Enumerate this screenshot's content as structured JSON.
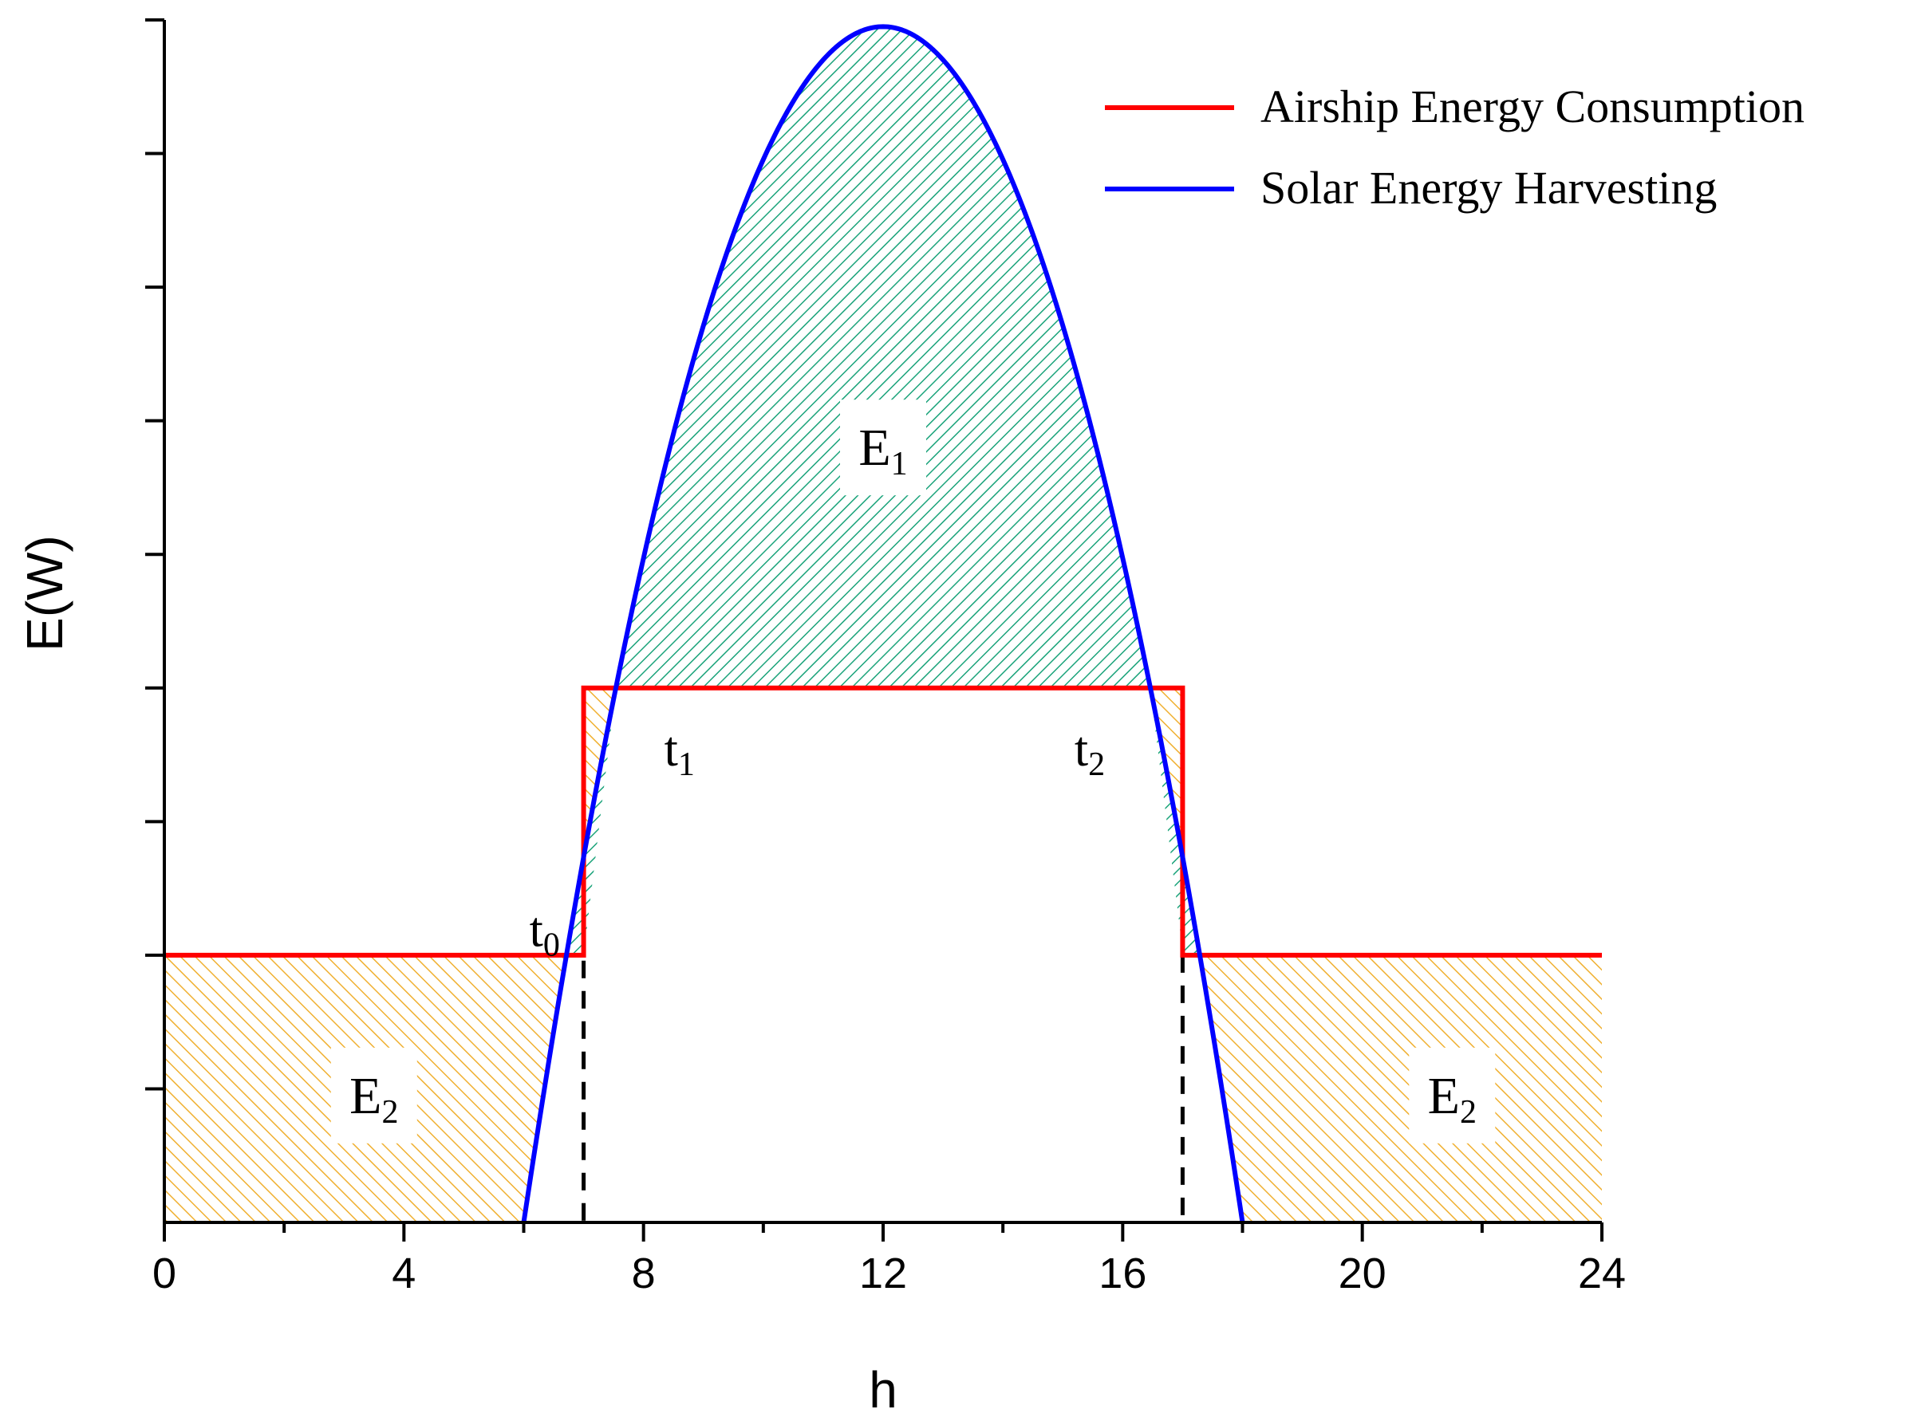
{
  "chart_data": {
    "type": "line",
    "xlabel": "h",
    "ylabel": "E(W)",
    "xlim": [
      0,
      24
    ],
    "ylim": [
      0,
      9
    ],
    "x_ticks": [
      0,
      4,
      8,
      12,
      16,
      20,
      24
    ],
    "y_tick_labels": "none",
    "grid": false,
    "legend_position": "top-right",
    "series": [
      {
        "name": "Airship Energy Consumption",
        "color": "#ff0000",
        "shape": "step",
        "x": [
          0,
          7,
          7,
          17,
          17,
          24
        ],
        "y": [
          2,
          2,
          4,
          4,
          2,
          2
        ]
      },
      {
        "name": "Solar Energy Harvesting",
        "color": "#0000ff",
        "shape": "parabola",
        "x_start": 6,
        "x_end": 18,
        "peak_x": 12,
        "peak_y": 8.95
      }
    ],
    "vertical_dashed_lines": [
      7,
      17
    ],
    "regions": [
      {
        "label_main": "E",
        "label_sub": "1",
        "fill": "green-hatch",
        "label_x": 12,
        "label_y": 5.8
      },
      {
        "label_main": "E",
        "label_sub": "2",
        "fill": "orange-hatch",
        "label_x": 3.5,
        "label_y": 0.95
      },
      {
        "label_main": "E",
        "label_sub": "2",
        "fill": "orange-hatch",
        "label_x": 21.5,
        "label_y": 0.95
      }
    ],
    "point_labels": [
      {
        "main": "t",
        "sub": "0",
        "x": 6.35,
        "y": 2.2
      },
      {
        "main": "t",
        "sub": "1",
        "x": 8.6,
        "y": 3.55
      },
      {
        "main": "t",
        "sub": "2",
        "x": 15.45,
        "y": 3.55
      }
    ],
    "colors": {
      "consumption": "#ff0000",
      "harvesting": "#0000ff",
      "surplus_hatch": "#1aa37a",
      "deficit_hatch": "#f0b030"
    }
  }
}
